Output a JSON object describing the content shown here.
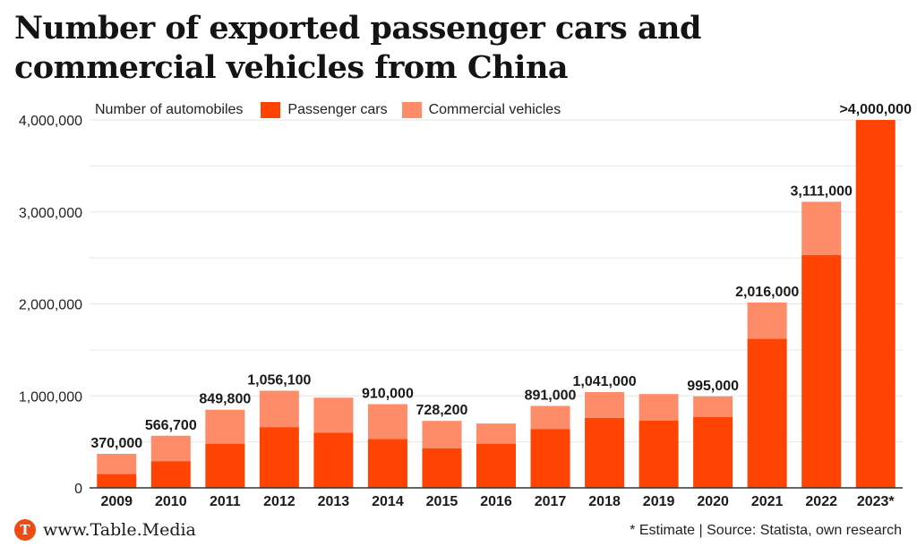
{
  "title": "Number of exported passenger cars and commercial vehicles from China",
  "footer": {
    "logo_letter": "T",
    "site": "www.Table.Media",
    "source": "* Estimate | Source: Statista, own research"
  },
  "colors": {
    "passenger": "#fe4303",
    "commercial": "#ff8c69",
    "grid": "#e6e6e6",
    "brand": "#ef4a13"
  },
  "chart_data": {
    "type": "bar",
    "stacked": true,
    "ylabel": "Number of automobiles",
    "ylim": [
      0,
      4000000
    ],
    "yticks": [
      0,
      1000000,
      2000000,
      3000000,
      4000000
    ],
    "ytick_labels": [
      "0",
      "1,000,000",
      "2,000,000",
      "3,000,000",
      "4,000,000"
    ],
    "grid": true,
    "legend_position": "top-left",
    "categories": [
      "2009",
      "2010",
      "2011",
      "2012",
      "2013",
      "2014",
      "2015",
      "2016",
      "2017",
      "2018",
      "2019",
      "2020",
      "2021",
      "2022",
      "2023*"
    ],
    "series": [
      {
        "name": "Passenger cars",
        "values": [
          150000,
          290000,
          480000,
          660000,
          600000,
          530000,
          430000,
          480000,
          640000,
          760000,
          730000,
          770000,
          1620000,
          2530000,
          4000000
        ]
      },
      {
        "name": "Commercial vehicles",
        "values": [
          220000,
          276700,
          369800,
          396100,
          380000,
          380000,
          298200,
          220000,
          251000,
          281000,
          290000,
          225000,
          396000,
          581000,
          0
        ]
      }
    ],
    "data_labels": [
      "370,000",
      "566,700",
      "849,800",
      "1,056,100",
      "",
      "910,000",
      "728,200",
      "",
      "891,000",
      "1,041,000",
      "",
      "995,000",
      "2,016,000",
      "3,111,000",
      ">4,000,000"
    ]
  }
}
